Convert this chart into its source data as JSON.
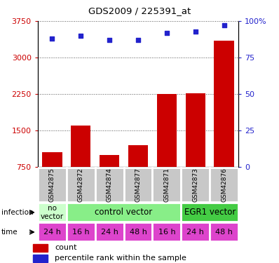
{
  "title": "GDS2009 / 225391_at",
  "samples": [
    "GSM42875",
    "GSM42872",
    "GSM42874",
    "GSM42877",
    "GSM42871",
    "GSM42873",
    "GSM42876"
  ],
  "counts": [
    1050,
    1600,
    1000,
    1200,
    2250,
    2270,
    3350
  ],
  "percentile_ranks": [
    88,
    90,
    87,
    87,
    92,
    93,
    97
  ],
  "ylim_left": [
    750,
    3750
  ],
  "yticks_left": [
    750,
    1500,
    2250,
    3000,
    3750
  ],
  "ylim_right": [
    0,
    100
  ],
  "yticks_right": [
    0,
    25,
    50,
    75,
    100
  ],
  "bar_color": "#cc0000",
  "dot_color": "#2222cc",
  "time_labels": [
    "24 h",
    "16 h",
    "24 h",
    "48 h",
    "16 h",
    "24 h",
    "48 h"
  ],
  "time_color": "#dd44cc",
  "sample_bg_color": "#c8c8c8",
  "grid_color": "#555555",
  "left_label_color": "#cc0000",
  "right_label_color": "#2222cc",
  "inf_no_vector_color": "#ccffcc",
  "inf_control_color": "#88ee88",
  "inf_egr1_color": "#44cc44"
}
